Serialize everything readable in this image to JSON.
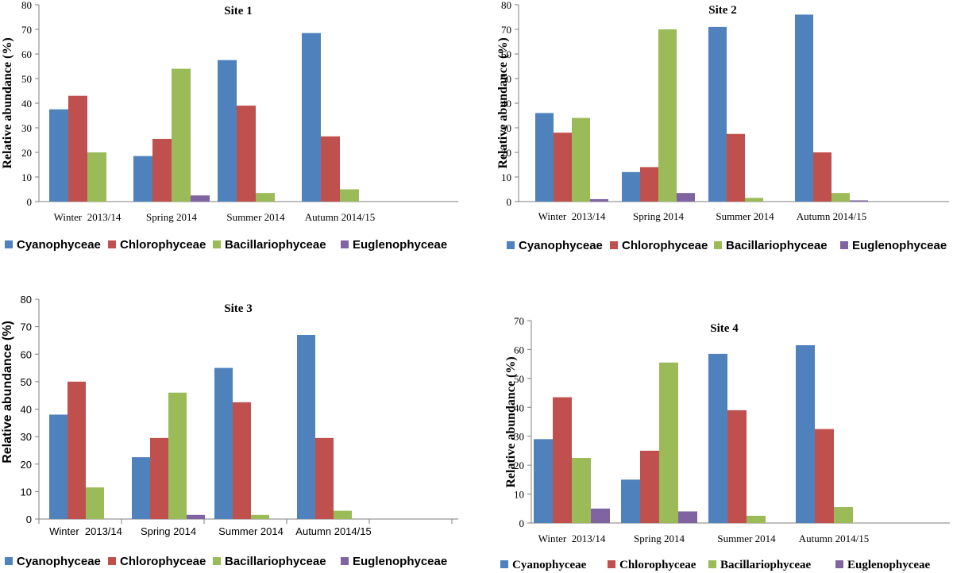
{
  "colors": {
    "Cyanophyceae": "#4f81bd",
    "Chlorophyceae": "#c0504d",
    "Bacillariophyceae": "#9bbb59",
    "Euglenophyceae": "#8064a2"
  },
  "chart_data": [
    {
      "type": "bar",
      "title": "Site 1",
      "ylabel": "Relative abundance (%)",
      "xlabel": "",
      "ylim": [
        0,
        80
      ],
      "yticks": [
        0,
        10,
        20,
        30,
        40,
        50,
        60,
        70,
        80
      ],
      "categories": [
        "Winter  2013/14",
        "Spring 2014",
        "Summer 2014",
        "Autumn 2014/15"
      ],
      "series": [
        {
          "name": "Cyanophyceae",
          "values": [
            37.5,
            18.5,
            57.5,
            68.5
          ]
        },
        {
          "name": "Chlorophyceae",
          "values": [
            43,
            25.5,
            39,
            26.5
          ]
        },
        {
          "name": "Bacillariophyceae",
          "values": [
            20,
            54,
            3.5,
            5
          ]
        },
        {
          "name": "Euglenophyceae",
          "values": [
            0,
            2.5,
            0,
            0
          ]
        }
      ],
      "legend": "bottom"
    },
    {
      "type": "bar",
      "title": "Site 2",
      "ylabel": "Relative abundance (%)",
      "xlabel": "",
      "ylim": [
        0,
        80
      ],
      "yticks": [
        0,
        10,
        20,
        30,
        40,
        50,
        60,
        70,
        80
      ],
      "categories": [
        "Winter  2013/14",
        "Spring 2014",
        "Summer 2014",
        "Autumn 2014/15"
      ],
      "series": [
        {
          "name": "Cyanophyceae",
          "values": [
            36,
            12,
            71,
            76
          ]
        },
        {
          "name": "Chlorophyceae",
          "values": [
            28,
            14,
            27.5,
            20
          ]
        },
        {
          "name": "Bacillariophyceae",
          "values": [
            34,
            70,
            1.5,
            3.5
          ]
        },
        {
          "name": "Euglenophyceae",
          "values": [
            1,
            3.5,
            0,
            0.5
          ]
        }
      ],
      "legend": "bottom"
    },
    {
      "type": "bar",
      "title": "Site 3",
      "ylabel": "Relative abundance (%)",
      "xlabel": "",
      "ylim": [
        0,
        80
      ],
      "yticks": [
        0,
        10,
        20,
        30,
        40,
        50,
        60,
        70,
        80
      ],
      "categories": [
        "Winter  2013/14",
        "Spring 2014",
        "Summer 2014",
        "Autumn 2014/15",
        ""
      ],
      "series": [
        {
          "name": "Cyanophyceae",
          "values": [
            38,
            22.5,
            55,
            67,
            0
          ]
        },
        {
          "name": "Chlorophyceae",
          "values": [
            50,
            29.5,
            42.5,
            29.5,
            0
          ]
        },
        {
          "name": "Bacillariophyceae",
          "values": [
            11.5,
            46,
            1.5,
            3,
            0
          ]
        },
        {
          "name": "Euglenophyceae",
          "values": [
            0,
            1.5,
            0,
            0,
            0
          ]
        }
      ],
      "legend": "bottom"
    },
    {
      "type": "bar",
      "title": "Site 4",
      "ylabel": "Relative abundance (%)",
      "xlabel": "",
      "ylim": [
        0,
        70
      ],
      "yticks": [
        0,
        10,
        20,
        30,
        40,
        50,
        60,
        70
      ],
      "categories": [
        "Winter  2013/14",
        "Spring 2014",
        "Summer 2014",
        "Autumn 2014/15"
      ],
      "series": [
        {
          "name": "Cyanophyceae",
          "values": [
            29,
            15,
            58.5,
            61.5
          ]
        },
        {
          "name": "Chlorophyceae",
          "values": [
            43.5,
            25,
            39,
            32.5
          ]
        },
        {
          "name": "Bacillariophyceae",
          "values": [
            22.5,
            55.5,
            2.5,
            5.5
          ]
        },
        {
          "name": "Euglenophyceae",
          "values": [
            5,
            4,
            0,
            0
          ]
        }
      ],
      "legend": "bottom"
    }
  ]
}
